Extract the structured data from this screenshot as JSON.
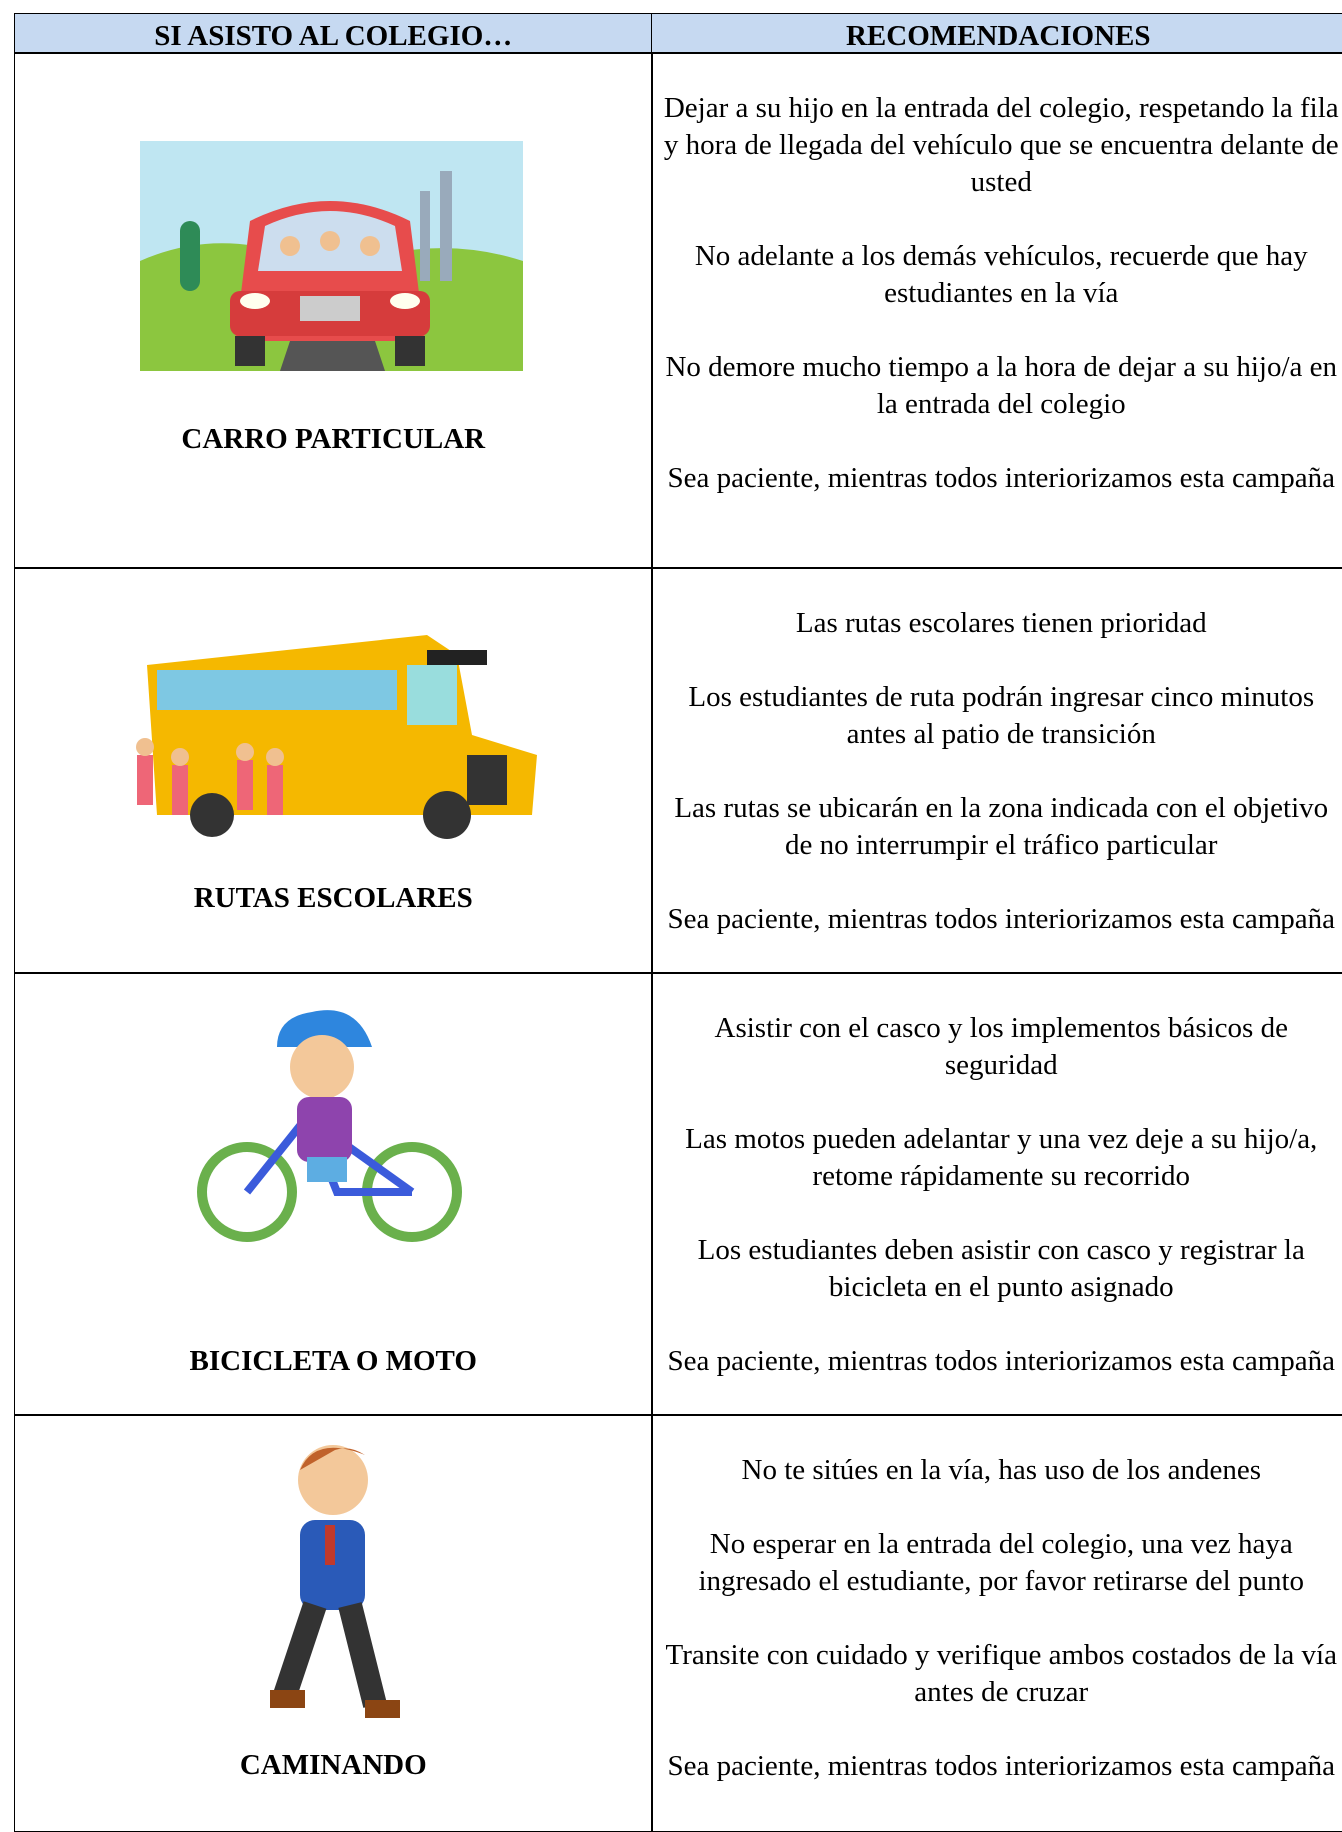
{
  "table": {
    "header": [
      "SI ASISTO AL COLEGIO…",
      "RECOMENDACIONES"
    ],
    "rows": [
      {
        "label": "CARRO PARTICULAR",
        "recommendations": [
          "Dejar a su hijo en la entrada del colegio, respetando la fila y hora de llegada del vehículo que se encuentra delante de usted",
          "No adelante a los demás vehículos, recuerde que hay estudiantes en la vía",
          "No demore mucho tiempo a la hora de dejar a su hijo/a en la entrada del colegio",
          "Sea paciente, mientras todos interiorizamos esta campaña"
        ]
      },
      {
        "label": "RUTAS ESCOLARES",
        "recommendations": [
          "Las rutas escolares tienen prioridad",
          "Los estudiantes de ruta podrán ingresar cinco minutos antes al patio de transición",
          "Las rutas se ubicarán en la zona indicada con el objetivo de no interrumpir el tráfico particular",
          "Sea paciente, mientras todos interiorizamos esta campaña"
        ]
      },
      {
        "label": "BICICLETA O MOTO",
        "recommendations": [
          "Asistir con el casco y los implementos básicos de seguridad",
          "Las motos pueden adelantar y una vez deje a su hijo/a, retome rápidamente su recorrido",
          "Los estudiantes deben asistir con casco y registrar la bicicleta en el punto asignado",
          "Sea paciente, mientras todos interiorizamos esta campaña"
        ]
      },
      {
        "label": "CAMINANDO",
        "recommendations": [
          "No te sitúes en la vía, has uso de los andenes",
          "No esperar en la entrada del colegio, una vez haya ingresado el estudiante, por favor retirarse del punto",
          "Transite con cuidado y verifique ambos costados de la vía antes de cruzar",
          "Sea paciente, mientras todos interiorizamos esta campaña"
        ]
      }
    ]
  }
}
